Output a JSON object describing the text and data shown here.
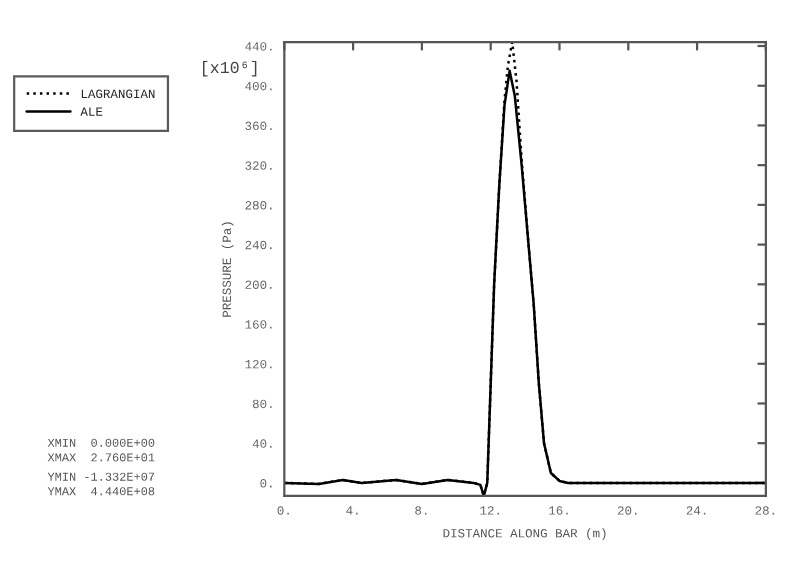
{
  "chart_data": {
    "type": "line",
    "xlabel": "DISTANCE ALONG BAR (m)",
    "ylabel": "PRESSURE (Pa)",
    "xlim": [
      0,
      28
    ],
    "ylim": [
      -13,
      444
    ],
    "xticks": [
      {
        "value": 0,
        "label": "0."
      },
      {
        "value": 4,
        "label": "4."
      },
      {
        "value": 8,
        "label": "8."
      },
      {
        "value": 12,
        "label": "12."
      },
      {
        "value": 16,
        "label": "16."
      },
      {
        "value": 20,
        "label": "20."
      },
      {
        "value": 24,
        "label": "24."
      },
      {
        "value": 28,
        "label": "28."
      }
    ],
    "yticks": [
      {
        "value": 0,
        "label": "0."
      },
      {
        "value": 40,
        "label": "40."
      },
      {
        "value": 80,
        "label": "80."
      },
      {
        "value": 120,
        "label": "120."
      },
      {
        "value": 160,
        "label": "160."
      },
      {
        "value": 200,
        "label": "200."
      },
      {
        "value": 240,
        "label": "240."
      },
      {
        "value": 280,
        "label": "280."
      },
      {
        "value": 320,
        "label": "320."
      },
      {
        "value": 360,
        "label": "360."
      },
      {
        "value": 400,
        "label": "400."
      },
      {
        "value": 440,
        "label": "440."
      }
    ],
    "series": [
      {
        "name": "LAGRANGIAN",
        "color": "#000000",
        "line_style": "dotted",
        "x": [
          0,
          2,
          3.4,
          4.5,
          6.5,
          8,
          9.5,
          11,
          11.4,
          11.6,
          11.8,
          12.0,
          12.2,
          12.5,
          12.8,
          13.0,
          13.25,
          13.5,
          13.8,
          14.2,
          14.5,
          14.8,
          15.1,
          15.5,
          16,
          16.5,
          28
        ],
        "values": [
          0,
          -1,
          3,
          0,
          3,
          -1,
          3,
          0,
          -2,
          -13,
          0,
          100,
          200,
          300,
          385,
          420,
          444,
          405,
          325,
          240,
          180,
          100,
          40,
          10,
          2,
          0,
          0
        ]
      },
      {
        "name": "ALE",
        "color": "#000000",
        "line_style": "solid",
        "x": [
          0,
          2,
          3.4,
          4.5,
          6.5,
          8,
          9.5,
          11,
          11.4,
          11.6,
          11.8,
          12.0,
          12.2,
          12.5,
          12.8,
          13.1,
          13.4,
          13.8,
          14.2,
          14.5,
          14.8,
          15.1,
          15.5,
          16,
          16.5,
          28
        ],
        "values": [
          0,
          -1,
          3,
          0,
          3,
          -1,
          3,
          0,
          -2,
          -13,
          0,
          100,
          200,
          300,
          380,
          415,
          390,
          320,
          240,
          180,
          100,
          40,
          10,
          2,
          0,
          0
        ]
      }
    ],
    "legend": "top left",
    "grid": false,
    "annotations": [
      "[x10⁶]",
      "XMIN  0.000E+00",
      "XMAX  2.760E+01",
      "YMIN -1.332E+07",
      "YMAX  4.440E+08"
    ]
  }
}
